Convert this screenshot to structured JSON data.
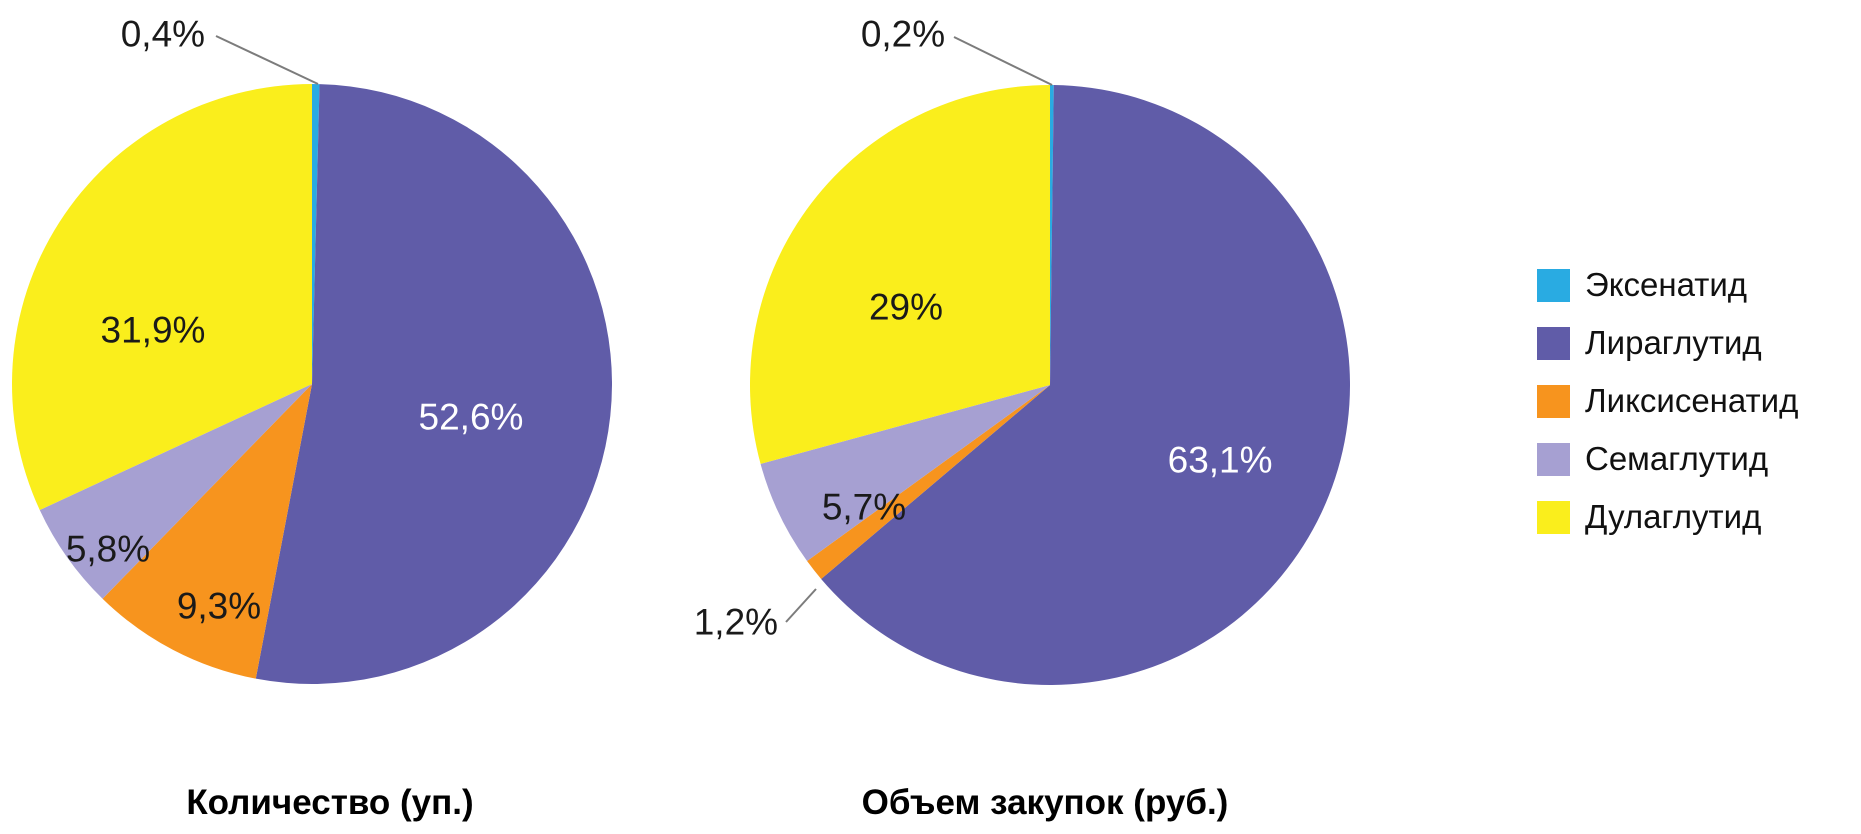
{
  "page": {
    "background": "#ffffff"
  },
  "legend": {
    "position": "right",
    "items": [
      {
        "label": "Эксенатид",
        "color": "#29abe2"
      },
      {
        "label": "Лираглутид",
        "color": "#605ca8"
      },
      {
        "label": "Ликсисенатид",
        "color": "#f7941e"
      },
      {
        "label": "Семаглутид",
        "color": "#a6a0d2"
      },
      {
        "label": "Дулаглутид",
        "color": "#faee1c"
      }
    ]
  },
  "chart_data": [
    {
      "type": "pie",
      "title": "Количество (уп.)",
      "start_angle_deg": 0,
      "direction": "clockwise",
      "units": "percent",
      "categories": [
        "Эксенатид",
        "Лираглутид",
        "Ликсисенатид",
        "Семаглутид",
        "Дулаглутид"
      ],
      "values": [
        0.4,
        52.6,
        9.3,
        5.8,
        31.9
      ],
      "slices": [
        {
          "label": "Эксенатид",
          "value": 0.4,
          "display": "0,4%",
          "color": "#29abe2",
          "label_placement": "outside",
          "label_color": "#1a1a1a",
          "label_pos": [
            -0.497,
            -1.167
          ],
          "leader": [
            [
              -0.32,
              -1.16
            ],
            [
              0.02,
              -1.0
            ]
          ]
        },
        {
          "label": "Лираглутид",
          "value": 52.6,
          "display": "52,6%",
          "color": "#605ca8",
          "label_placement": "inside",
          "label_color": "#ffffff",
          "label_pos": [
            0.53,
            0.11
          ]
        },
        {
          "label": "Ликсисенатид",
          "value": 9.3,
          "display": "9,3%",
          "color": "#f7941e",
          "label_placement": "inside",
          "label_color": "#1a1a1a",
          "label_pos": [
            -0.31,
            0.74
          ]
        },
        {
          "label": "Семаглутид",
          "value": 5.8,
          "display": "5,8%",
          "color": "#a6a0d2",
          "label_placement": "inside",
          "label_color": "#1a1a1a",
          "label_pos": [
            -0.68,
            0.55
          ]
        },
        {
          "label": "Дулаглутид",
          "value": 31.9,
          "display": "31,9%",
          "color": "#faee1c",
          "label_placement": "inside",
          "label_color": "#1a1a1a",
          "label_pos": [
            -0.53,
            -0.18
          ]
        }
      ]
    },
    {
      "type": "pie",
      "title": "Объем закупок (руб.)",
      "start_angle_deg": 0,
      "direction": "clockwise",
      "units": "percent",
      "categories": [
        "Эксенатид",
        "Лираглутид",
        "Ликсисенатид",
        "Семаглутид",
        "Дулаглутид"
      ],
      "values": [
        0.2,
        63.1,
        1.2,
        5.7,
        29
      ],
      "slices": [
        {
          "label": "Эксенатид",
          "value": 0.2,
          "display": "0,2%",
          "color": "#29abe2",
          "label_placement": "outside",
          "label_color": "#1a1a1a",
          "label_pos": [
            -0.49,
            -1.17
          ],
          "leader": [
            [
              -0.32,
              -1.16
            ],
            [
              0.007,
              -1.0
            ]
          ]
        },
        {
          "label": "Лираглутид",
          "value": 63.1,
          "display": "63,1%",
          "color": "#605ca8",
          "label_placement": "inside",
          "label_color": "#ffffff",
          "label_pos": [
            0.567,
            0.25
          ]
        },
        {
          "label": "Ликсисенатид",
          "value": 1.2,
          "display": "1,2%",
          "color": "#f7941e",
          "label_placement": "outside",
          "label_color": "#1a1a1a",
          "label_pos": [
            -1.047,
            0.79
          ],
          "leader": [
            [
              -0.88,
              0.79
            ],
            [
              -0.78,
              0.68
            ]
          ]
        },
        {
          "label": "Семаглутид",
          "value": 5.7,
          "display": "5,7%",
          "color": "#a6a0d2",
          "label_placement": "inside",
          "label_color": "#1a1a1a",
          "label_pos": [
            -0.62,
            0.407
          ]
        },
        {
          "label": "Дулаглутид",
          "value": 29,
          "display": "29%",
          "color": "#faee1c",
          "label_placement": "inside",
          "label_color": "#1a1a1a",
          "label_pos": [
            -0.48,
            -0.26
          ]
        }
      ]
    }
  ]
}
